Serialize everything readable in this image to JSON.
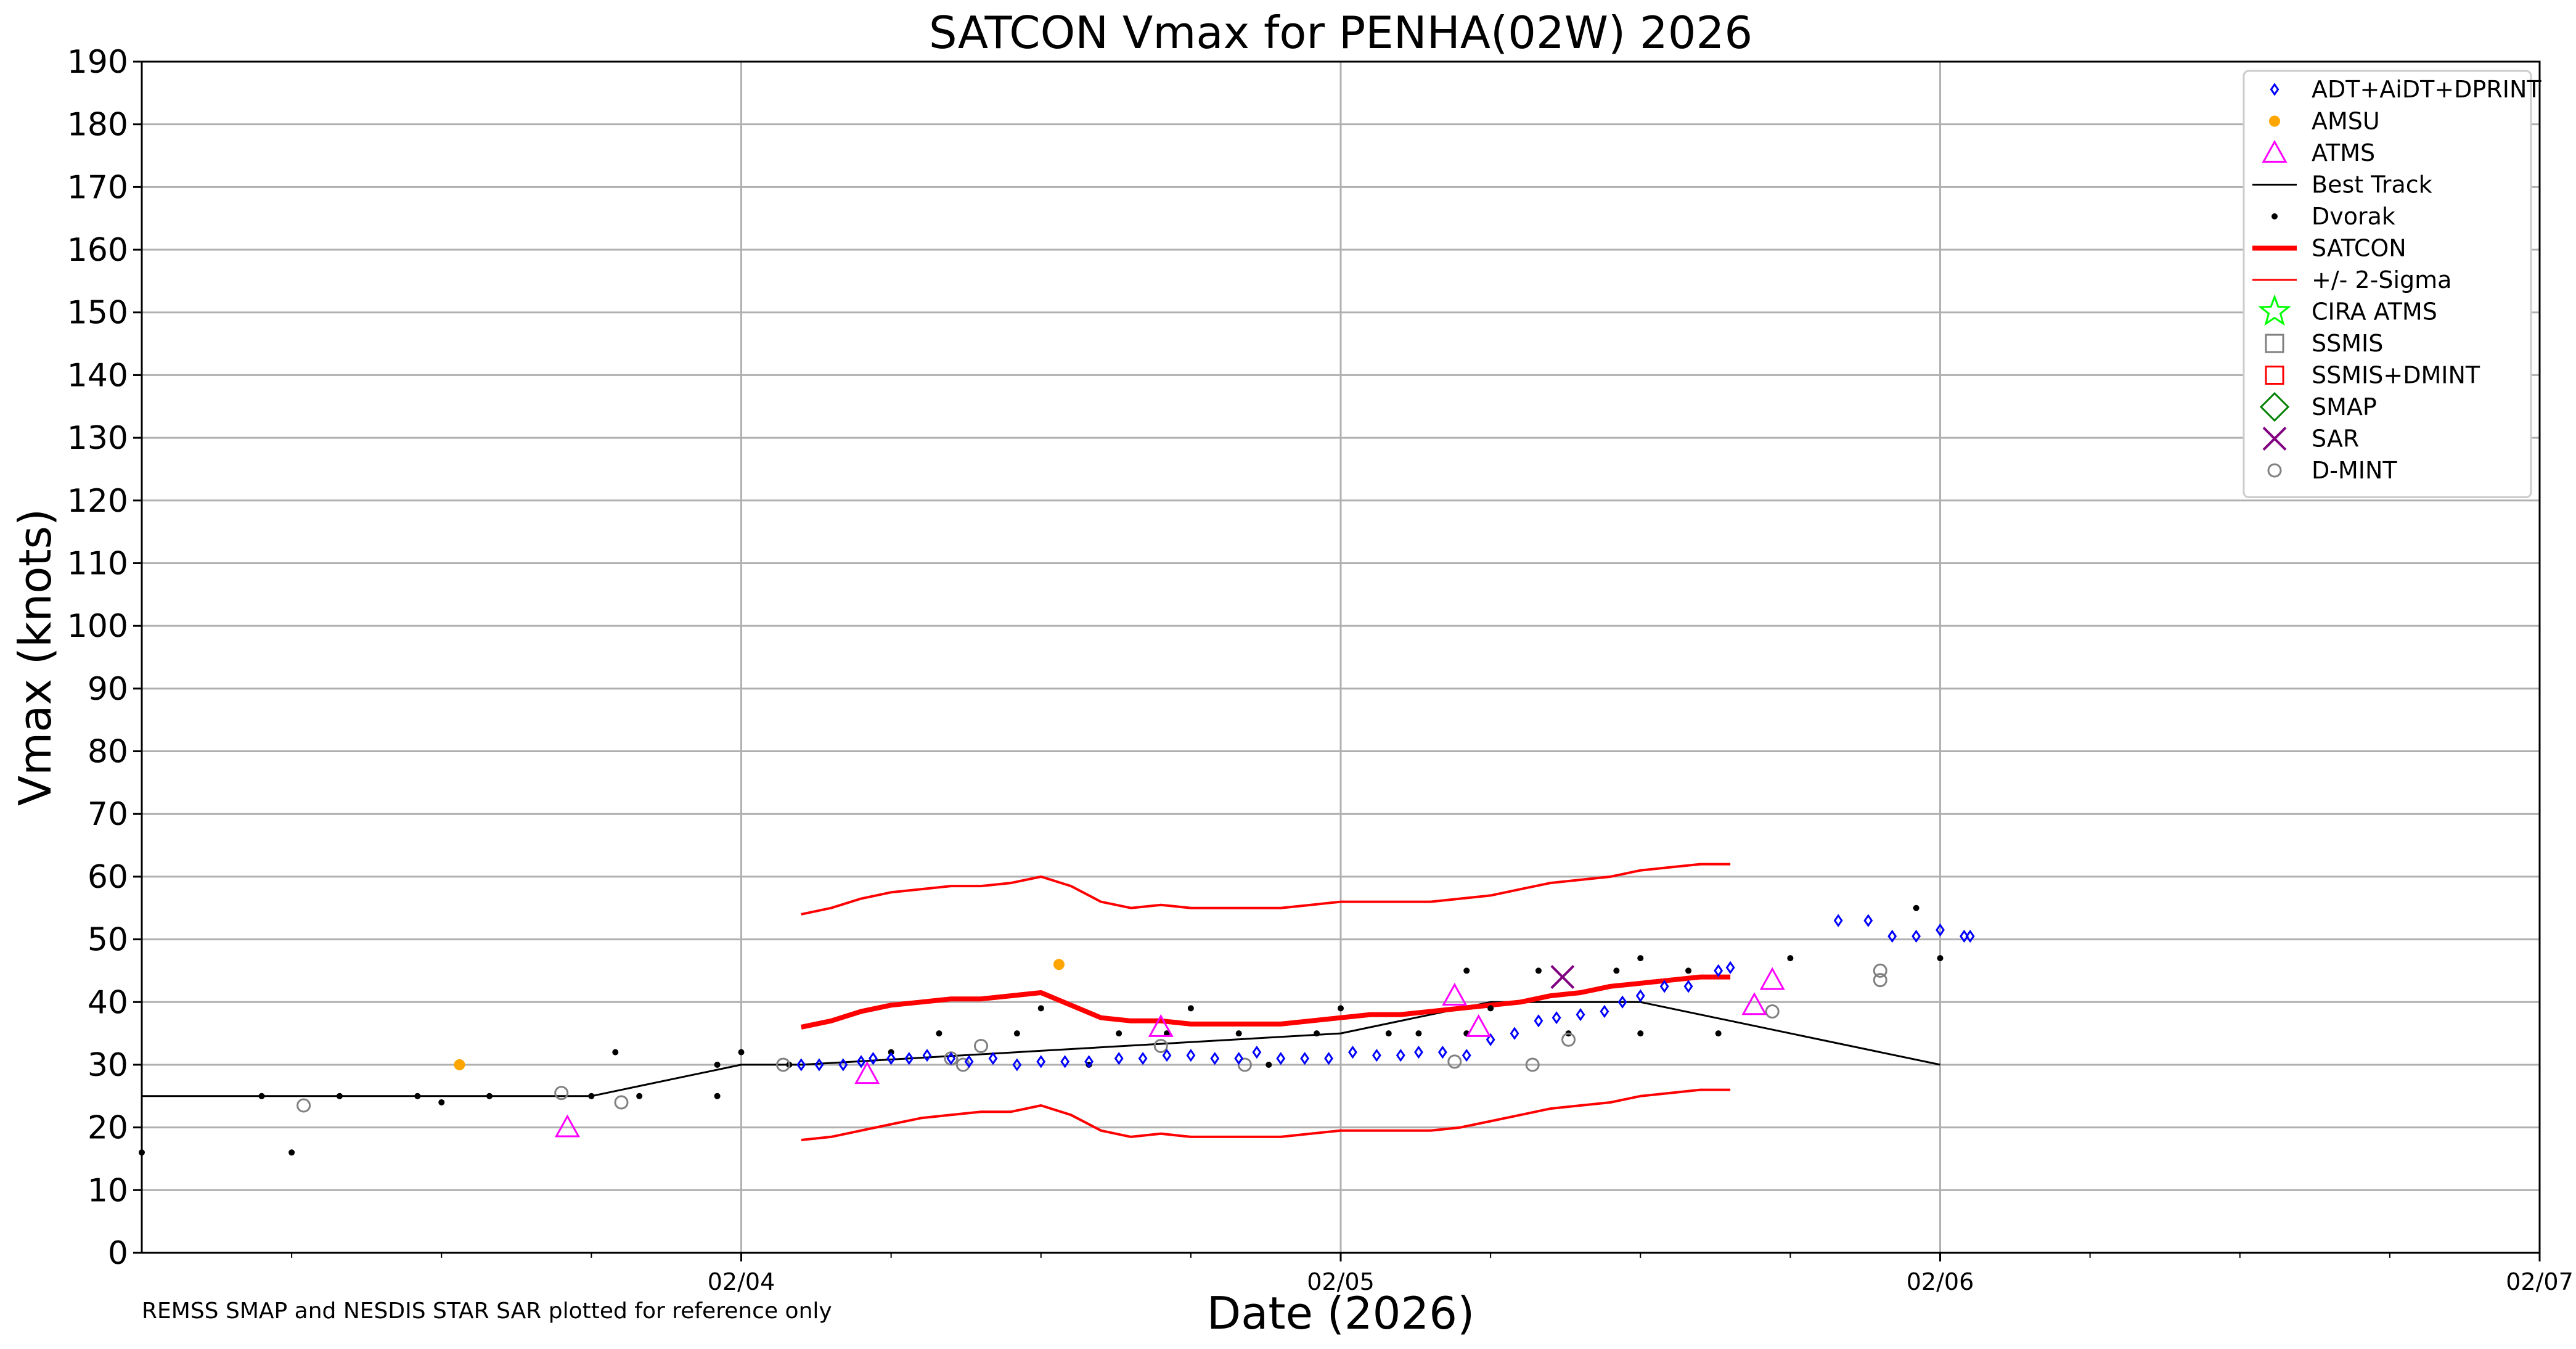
{
  "chart_data": {
    "type": "scatter",
    "title": "SATCON Vmax for PENHA(02W) 2026",
    "xlabel": "Date (2026)",
    "ylabel": "Vmax (knots)",
    "footnote": "REMSS SMAP and NESDIS STAR SAR plotted for reference only",
    "xlim": [
      0,
      4
    ],
    "ylim": [
      0,
      190
    ],
    "yticks": [
      0,
      10,
      20,
      30,
      40,
      50,
      60,
      70,
      80,
      90,
      100,
      110,
      120,
      130,
      140,
      150,
      160,
      170,
      180,
      190
    ],
    "ytick_labels": [
      "0",
      "10",
      "20",
      "30",
      "40",
      "50",
      "60",
      "70",
      "80",
      "90",
      "100",
      "110",
      "120",
      "130",
      "140",
      "150",
      "160",
      "170",
      "180",
      "190"
    ],
    "xticks": [
      1,
      2,
      3,
      4
    ],
    "xtick_labels": [
      "02/04",
      "02/05",
      "02/06",
      "02/07"
    ],
    "x_minor_step": 0.25,
    "x_axis_note": "x measured in days after 02/03 00Z",
    "grid": true,
    "legend_position": "top-right",
    "colors": {
      "adt": "#0000ff",
      "amsu": "#ffa500",
      "atms": "#ff00ff",
      "best_track": "#000000",
      "dvorak": "#000000",
      "satcon": "#ff0000",
      "sigma": "#ff0000",
      "cira_atms": "#00ff00",
      "ssmis": "#808080",
      "ssmis_dmint": "#ff0000",
      "smap": "#008000",
      "sar": "#800080",
      "dmint": "#808080"
    },
    "legend": [
      {
        "key": "adt",
        "label": "ADT+AiDT+DPRINT",
        "marker": "diamond-small"
      },
      {
        "key": "amsu",
        "label": "AMSU",
        "marker": "dot"
      },
      {
        "key": "atms",
        "label": "ATMS",
        "marker": "triangle"
      },
      {
        "key": "best_track",
        "label": "Best Track",
        "marker": "line-thin"
      },
      {
        "key": "dvorak",
        "label": "Dvorak",
        "marker": "dot-small"
      },
      {
        "key": "satcon",
        "label": "SATCON",
        "marker": "line-thick"
      },
      {
        "key": "sigma",
        "label": "+/- 2-Sigma",
        "marker": "line-thin"
      },
      {
        "key": "cira_atms",
        "label": "CIRA ATMS",
        "marker": "star"
      },
      {
        "key": "ssmis",
        "label": "SSMIS",
        "marker": "square"
      },
      {
        "key": "ssmis_dmint",
        "label": "SSMIS+DMINT",
        "marker": "square"
      },
      {
        "key": "smap",
        "label": "SMAP",
        "marker": "diamond"
      },
      {
        "key": "sar",
        "label": "SAR",
        "marker": "x"
      },
      {
        "key": "dmint",
        "label": "D-MINT",
        "marker": "circle"
      }
    ],
    "series": [
      {
        "key": "best_track",
        "x": [
          0,
          0.75,
          1.0,
          1.1,
          2.0,
          2.25,
          2.5,
          3.0
        ],
        "y": [
          25,
          25,
          30,
          30,
          35,
          40,
          40,
          30
        ]
      },
      {
        "key": "satcon",
        "x": [
          1.1,
          1.15,
          1.2,
          1.25,
          1.3,
          1.35,
          1.4,
          1.45,
          1.5,
          1.55,
          1.6,
          1.65,
          1.7,
          1.75,
          1.8,
          1.85,
          1.9,
          1.95,
          2.0,
          2.05,
          2.1,
          2.15,
          2.2,
          2.25,
          2.3,
          2.35,
          2.4,
          2.45,
          2.5,
          2.55,
          2.6,
          2.65
        ],
        "y": [
          36,
          37,
          38.5,
          39.5,
          40,
          40.5,
          40.5,
          41,
          41.5,
          39.5,
          37.5,
          37,
          37,
          36.5,
          36.5,
          36.5,
          36.5,
          37,
          37.5,
          38,
          38,
          38.5,
          39,
          39.5,
          40,
          41,
          41.5,
          42.5,
          43,
          43.5,
          44,
          44
        ]
      },
      {
        "key": "sigma_upper",
        "x": [
          1.1,
          1.15,
          1.2,
          1.25,
          1.3,
          1.35,
          1.4,
          1.45,
          1.5,
          1.55,
          1.6,
          1.65,
          1.7,
          1.75,
          1.8,
          1.85,
          1.9,
          1.95,
          2.0,
          2.05,
          2.1,
          2.15,
          2.2,
          2.25,
          2.3,
          2.35,
          2.4,
          2.45,
          2.5,
          2.55,
          2.6,
          2.65
        ],
        "y": [
          54,
          55,
          56.5,
          57.5,
          58,
          58.5,
          58.5,
          59,
          60,
          58.5,
          56,
          55,
          55.5,
          55,
          55,
          55,
          55,
          55.5,
          56,
          56,
          56,
          56,
          56.5,
          57,
          58,
          59,
          59.5,
          60,
          61,
          61.5,
          62,
          62
        ]
      },
      {
        "key": "sigma_lower",
        "x": [
          1.1,
          1.15,
          1.2,
          1.25,
          1.3,
          1.35,
          1.4,
          1.45,
          1.5,
          1.55,
          1.6,
          1.65,
          1.7,
          1.75,
          1.8,
          1.85,
          1.9,
          1.95,
          2.0,
          2.05,
          2.1,
          2.15,
          2.2,
          2.25,
          2.3,
          2.35,
          2.4,
          2.45,
          2.5,
          2.55,
          2.6,
          2.65
        ],
        "y": [
          18,
          18.5,
          19.5,
          20.5,
          21.5,
          22,
          22.5,
          22.5,
          23.5,
          22,
          19.5,
          18.5,
          19,
          18.5,
          18.5,
          18.5,
          18.5,
          19,
          19.5,
          19.5,
          19.5,
          19.5,
          20,
          21,
          22,
          23,
          23.5,
          24,
          25,
          25.5,
          26,
          26
        ]
      },
      {
        "key": "dvorak",
        "points": [
          [
            0,
            16
          ],
          [
            0.2,
            25
          ],
          [
            0.25,
            16
          ],
          [
            0.33,
            25
          ],
          [
            0.46,
            25
          ],
          [
            0.5,
            24
          ],
          [
            0.58,
            25
          ],
          [
            0.75,
            25
          ],
          [
            0.79,
            32
          ],
          [
            0.83,
            25
          ],
          [
            0.96,
            30
          ],
          [
            0.96,
            25
          ],
          [
            1.0,
            32
          ],
          [
            1.08,
            30
          ],
          [
            1.25,
            32
          ],
          [
            1.33,
            35
          ],
          [
            1.46,
            35
          ],
          [
            1.5,
            39
          ],
          [
            1.58,
            30
          ],
          [
            1.63,
            35
          ],
          [
            1.71,
            35
          ],
          [
            1.75,
            39
          ],
          [
            1.83,
            35
          ],
          [
            1.88,
            30
          ],
          [
            1.96,
            35
          ],
          [
            2.0,
            39
          ],
          [
            2.08,
            35
          ],
          [
            2.13,
            35
          ],
          [
            2.21,
            45
          ],
          [
            2.21,
            35
          ],
          [
            2.25,
            39
          ],
          [
            2.33,
            45
          ],
          [
            2.38,
            35
          ],
          [
            2.46,
            45
          ],
          [
            2.5,
            47
          ],
          [
            2.5,
            35
          ],
          [
            2.58,
            45
          ],
          [
            2.63,
            35
          ],
          [
            2.75,
            47
          ],
          [
            2.96,
            55
          ],
          [
            3.0,
            47
          ]
        ]
      },
      {
        "key": "adt",
        "points": [
          [
            1.1,
            30
          ],
          [
            1.13,
            30
          ],
          [
            1.17,
            30
          ],
          [
            1.2,
            30.5
          ],
          [
            1.22,
            31
          ],
          [
            1.25,
            31
          ],
          [
            1.28,
            31
          ],
          [
            1.31,
            31.5
          ],
          [
            1.35,
            31
          ],
          [
            1.38,
            30.5
          ],
          [
            1.42,
            31
          ],
          [
            1.46,
            30
          ],
          [
            1.5,
            30.5
          ],
          [
            1.54,
            30.5
          ],
          [
            1.58,
            30.5
          ],
          [
            1.63,
            31
          ],
          [
            1.67,
            31
          ],
          [
            1.71,
            31.5
          ],
          [
            1.75,
            31.5
          ],
          [
            1.79,
            31
          ],
          [
            1.83,
            31
          ],
          [
            1.86,
            32
          ],
          [
            1.9,
            31
          ],
          [
            1.94,
            31
          ],
          [
            1.98,
            31
          ],
          [
            2.02,
            32
          ],
          [
            2.06,
            31.5
          ],
          [
            2.1,
            31.5
          ],
          [
            2.13,
            32
          ],
          [
            2.17,
            32
          ],
          [
            2.21,
            31.5
          ],
          [
            2.25,
            34
          ],
          [
            2.29,
            35
          ],
          [
            2.33,
            37
          ],
          [
            2.36,
            37.5
          ],
          [
            2.4,
            38
          ],
          [
            2.44,
            38.5
          ],
          [
            2.47,
            40
          ],
          [
            2.5,
            41
          ],
          [
            2.54,
            42.5
          ],
          [
            2.58,
            42.5
          ],
          [
            2.63,
            45
          ],
          [
            2.65,
            45.5
          ],
          [
            2.83,
            53
          ],
          [
            2.88,
            53
          ],
          [
            2.92,
            50.5
          ],
          [
            2.96,
            50.5
          ],
          [
            3.0,
            51.5
          ],
          [
            3.04,
            50.5
          ],
          [
            3.05,
            50.5
          ]
        ]
      },
      {
        "key": "amsu",
        "points": [
          [
            0.53,
            30
          ],
          [
            1.53,
            46
          ]
        ]
      },
      {
        "key": "atms",
        "points": [
          [
            0.71,
            20
          ],
          [
            1.21,
            28.5
          ],
          [
            1.7,
            36
          ],
          [
            2.19,
            41
          ],
          [
            2.23,
            36
          ],
          [
            2.69,
            39.5
          ],
          [
            2.72,
            43.5
          ]
        ]
      },
      {
        "key": "dmint",
        "points": [
          [
            0.27,
            23.5
          ],
          [
            0.7,
            25.5
          ],
          [
            0.8,
            24
          ],
          [
            1.07,
            30
          ],
          [
            1.35,
            31
          ],
          [
            1.37,
            30
          ],
          [
            1.4,
            33
          ],
          [
            1.7,
            33
          ],
          [
            1.84,
            30
          ],
          [
            2.19,
            30.5
          ],
          [
            2.32,
            30
          ],
          [
            2.38,
            34
          ],
          [
            2.72,
            38.5
          ],
          [
            2.9,
            45
          ],
          [
            2.9,
            43.5
          ]
        ]
      },
      {
        "key": "sar",
        "points": [
          [
            2.37,
            44
          ]
        ]
      }
    ]
  }
}
